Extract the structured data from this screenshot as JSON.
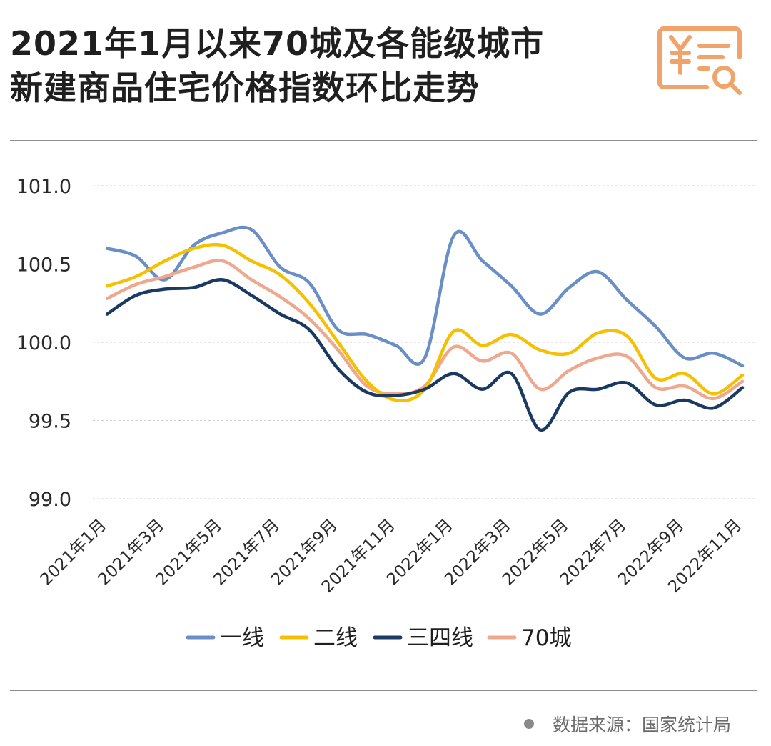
{
  "header": {
    "title_line1": "2021年1月以来70城及各能级城市",
    "title_line2": "新建商品住宅价格指数环比走势",
    "logo_icon": "price-index-document-icon",
    "logo_color": "#F0A36A"
  },
  "footer": {
    "source": "数据来源：国家统计局"
  },
  "chart_data": {
    "type": "line",
    "x": [
      "2021年1月",
      "2021年2月",
      "2021年3月",
      "2021年4月",
      "2021年5月",
      "2021年6月",
      "2021年7月",
      "2021年8月",
      "2021年9月",
      "2021年10月",
      "2021年11月",
      "2021年12月",
      "2022年1月",
      "2022年2月",
      "2022年3月",
      "2022年4月",
      "2022年5月",
      "2022年6月",
      "2022年7月",
      "2022年8月",
      "2022年9月",
      "2022年10月",
      "2022年11月"
    ],
    "x_tick_labels": [
      "2021年1月",
      "2021年3月",
      "2021年5月",
      "2021年7月",
      "2021年9月",
      "2021年11月",
      "2022年1月",
      "2022年3月",
      "2022年5月",
      "2022年7月",
      "2022年9月",
      "2022年11月"
    ],
    "y_ticks": [
      "101.0",
      "100.5",
      "100.0",
      "99.5",
      "99.0"
    ],
    "ylim": [
      99.0,
      101.0
    ],
    "grid": true,
    "legend_position": "bottom",
    "series": [
      {
        "name": "一线",
        "color": "#6A8FC7",
        "values": [
          100.6,
          100.55,
          100.4,
          100.62,
          100.7,
          100.72,
          100.48,
          100.38,
          100.08,
          100.05,
          99.98,
          99.9,
          100.68,
          100.52,
          100.36,
          100.18,
          100.35,
          100.45,
          100.27,
          100.1,
          99.9,
          99.93,
          99.85
        ]
      },
      {
        "name": "二线",
        "color": "#F6C000",
        "values": [
          100.36,
          100.42,
          100.52,
          100.6,
          100.62,
          100.52,
          100.43,
          100.25,
          100.0,
          99.75,
          99.63,
          99.7,
          100.07,
          99.98,
          100.05,
          99.95,
          99.93,
          100.06,
          100.04,
          99.77,
          99.8,
          99.67,
          99.79
        ]
      },
      {
        "name": "三四线",
        "color": "#1B3A62",
        "values": [
          100.18,
          100.3,
          100.34,
          100.35,
          100.4,
          100.3,
          100.18,
          100.08,
          99.83,
          99.68,
          99.66,
          99.7,
          99.8,
          99.7,
          99.8,
          99.44,
          99.68,
          99.7,
          99.74,
          99.6,
          99.63,
          99.58,
          99.71
        ]
      },
      {
        "name": "70城",
        "color": "#EEA88E",
        "values": [
          100.28,
          100.37,
          100.42,
          100.48,
          100.52,
          100.4,
          100.29,
          100.15,
          99.95,
          99.72,
          99.67,
          99.72,
          99.97,
          99.88,
          99.93,
          99.7,
          99.82,
          99.9,
          99.91,
          99.71,
          99.72,
          99.64,
          99.75
        ]
      }
    ]
  }
}
